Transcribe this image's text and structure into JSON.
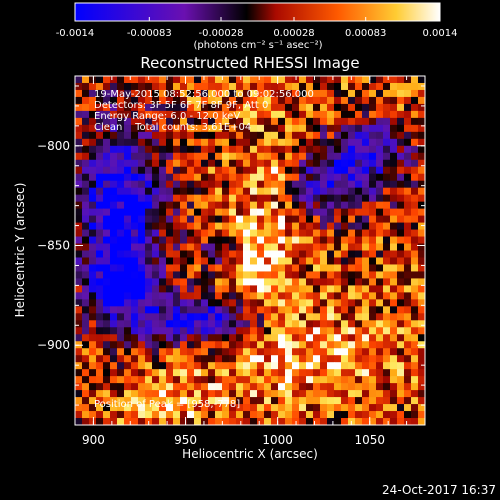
{
  "colorbar": {
    "tick_labels": [
      "-0.0014",
      "-0.00083",
      "-0.00028",
      "0.00028",
      "0.00083",
      "0.0014"
    ],
    "tick_values": [
      -0.0014,
      -0.00083,
      -0.00028,
      0.00028,
      0.00083,
      0.0014
    ],
    "range": [
      -0.0014,
      0.0014
    ],
    "units": "(photons cm⁻² s⁻¹ asec⁻²)",
    "colors": [
      "#0000ff",
      "#5a0aa0",
      "#000000",
      "#cc2200",
      "#ff6a00",
      "#ffcc33",
      "#ffffff"
    ]
  },
  "chart_data": {
    "type": "heatmap",
    "title": "Reconstructed RHESSI Image",
    "xlabel": "Heliocentric X (arcsec)",
    "ylabel": "Heliocentric Y (arcsec)",
    "xlim": [
      890,
      1080
    ],
    "ylim": [
      -940,
      -765
    ],
    "x_ticks": [
      900,
      950,
      1000,
      1050
    ],
    "y_ticks": [
      -800,
      -850,
      -900
    ],
    "x_tick_labels": [
      "900",
      "950",
      "1000",
      "1050"
    ],
    "y_tick_labels": [
      "−800",
      "−850",
      "−900"
    ],
    "annotations": [
      "19-May-2015 08:52:56.000 to 09:02:56.000",
      "Detectors: 3F 5F 6F 7F 8F 9F, Att 0",
      "Energy Range: 6.0 - 12.0 keV",
      "Clean    Total counts: 3.61E+04",
      "Position of Peak = [958,-778]"
    ],
    "peak": [
      958,
      -778
    ]
  },
  "footer": {
    "timestamp": "24-Oct-2017 16:37"
  }
}
